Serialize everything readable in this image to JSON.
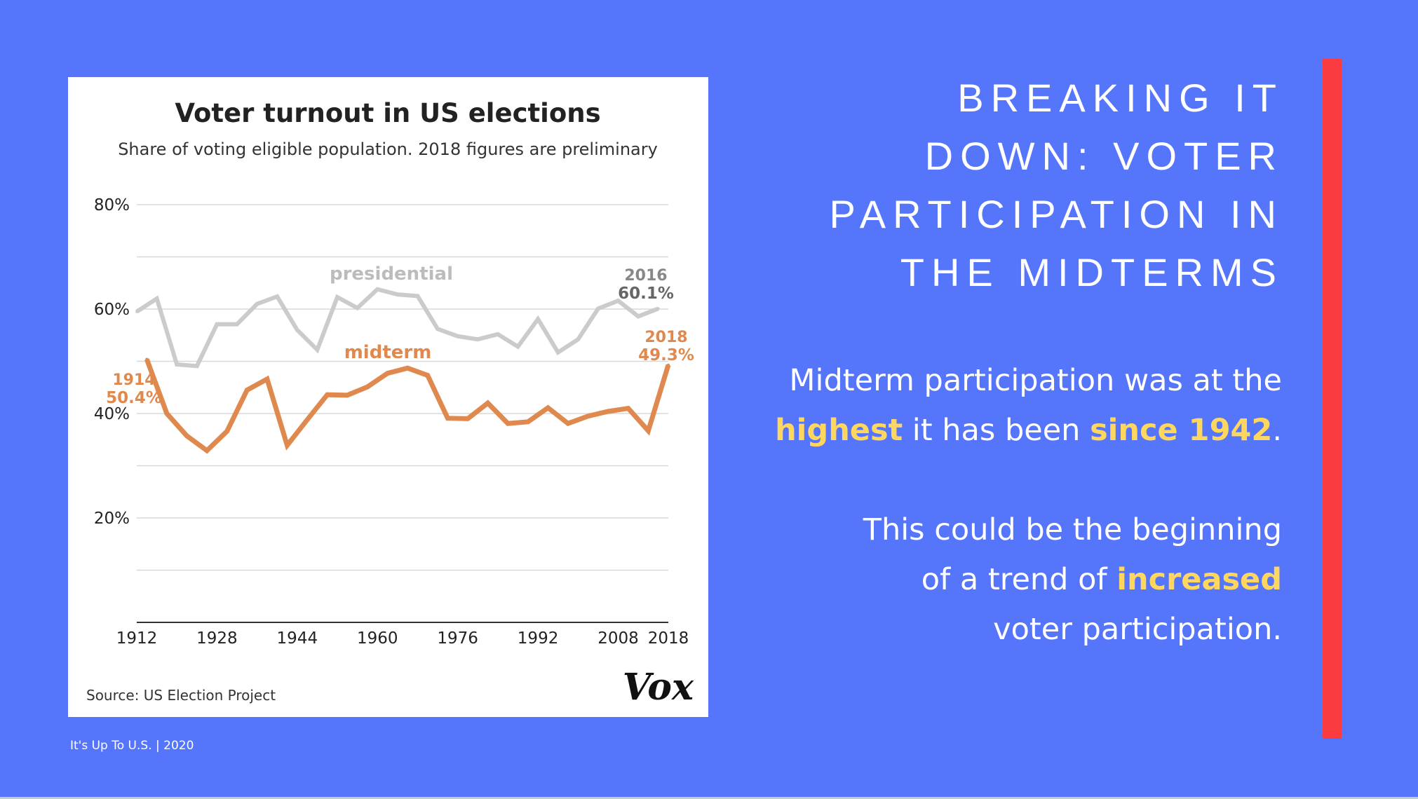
{
  "slide": {
    "heading_lines": [
      "BREAKING IT",
      "DOWN: VOTER",
      "PARTICIPATION IN",
      "THE MIDTERMS"
    ],
    "paragraph1": {
      "part1": "Midterm participation was at the",
      "highlight1": "highest",
      "part2": " it has been ",
      "highlight2": "since 1942",
      "part3": "."
    },
    "paragraph2": {
      "part1": "This could be the beginning",
      "part2": "of a trend of ",
      "highlight": "increased",
      "part3": "voter participation."
    },
    "footer": "It's Up To U.S. | 2020",
    "colors": {
      "background": "#5575fb",
      "accent_bar": "#fa3b3f",
      "highlight": "#ffd75e"
    }
  },
  "chart_data": {
    "type": "line",
    "title": "Voter turnout in US elections",
    "subtitle": "Share of voting eligible population. 2018 figures are preliminary",
    "source": "Source: US Election Project",
    "logo": "Vox",
    "xlabel": "",
    "ylabel": "",
    "xlim": [
      1912,
      2018
    ],
    "ylim": [
      0,
      80
    ],
    "x_ticks": [
      1912,
      1928,
      1944,
      1960,
      1976,
      1992,
      2008,
      2018
    ],
    "y_ticks": [
      20,
      40,
      60,
      80
    ],
    "y_tick_labels": [
      "20%",
      "40%",
      "60%",
      "80%"
    ],
    "gridlines": [
      10,
      20,
      30,
      40,
      50,
      60,
      70,
      80
    ],
    "series": [
      {
        "name": "presidential",
        "color": "#cbcbcb",
        "points": [
          [
            1912,
            59.5
          ],
          [
            1916,
            62
          ],
          [
            1920,
            49.4
          ],
          [
            1924,
            49.1
          ],
          [
            1928,
            57.1
          ],
          [
            1932,
            57.1
          ],
          [
            1936,
            61
          ],
          [
            1940,
            62.4
          ],
          [
            1944,
            56
          ],
          [
            1948,
            52.2
          ],
          [
            1952,
            62.3
          ],
          [
            1956,
            60.2
          ],
          [
            1960,
            63.8
          ],
          [
            1964,
            62.8
          ],
          [
            1968,
            62.5
          ],
          [
            1972,
            56.2
          ],
          [
            1976,
            54.8
          ],
          [
            1980,
            54.2
          ],
          [
            1984,
            55.2
          ],
          [
            1988,
            52.8
          ],
          [
            1992,
            58.1
          ],
          [
            1996,
            51.7
          ],
          [
            2000,
            54.2
          ],
          [
            2004,
            60.1
          ],
          [
            2008,
            61.6
          ],
          [
            2012,
            58.6
          ],
          [
            2016,
            60.1
          ]
        ],
        "label": "presidential",
        "end_label_year": "2016",
        "end_label_value": "60.1%"
      },
      {
        "name": "midterm",
        "color": "#e0894e",
        "points": [
          [
            1914,
            50.4
          ],
          [
            1918,
            40
          ],
          [
            1922,
            35.7
          ],
          [
            1926,
            32.9
          ],
          [
            1930,
            36.6
          ],
          [
            1934,
            44.5
          ],
          [
            1938,
            46.6
          ],
          [
            1942,
            33.9
          ],
          [
            1946,
            38.8
          ],
          [
            1950,
            43.6
          ],
          [
            1954,
            43.5
          ],
          [
            1958,
            45.1
          ],
          [
            1962,
            47.7
          ],
          [
            1966,
            48.7
          ],
          [
            1970,
            47.3
          ],
          [
            1974,
            39.1
          ],
          [
            1978,
            39
          ],
          [
            1982,
            42
          ],
          [
            1986,
            38.1
          ],
          [
            1990,
            38.4
          ],
          [
            1994,
            41.1
          ],
          [
            1998,
            38.1
          ],
          [
            2002,
            39.5
          ],
          [
            2006,
            40.4
          ],
          [
            2010,
            41
          ],
          [
            2014,
            36.7
          ],
          [
            2018,
            49.3
          ]
        ],
        "label": "midterm",
        "start_label_year": "1914",
        "start_label_value": "50.4%",
        "end_label_year": "2018",
        "end_label_value": "49.3%"
      }
    ]
  }
}
